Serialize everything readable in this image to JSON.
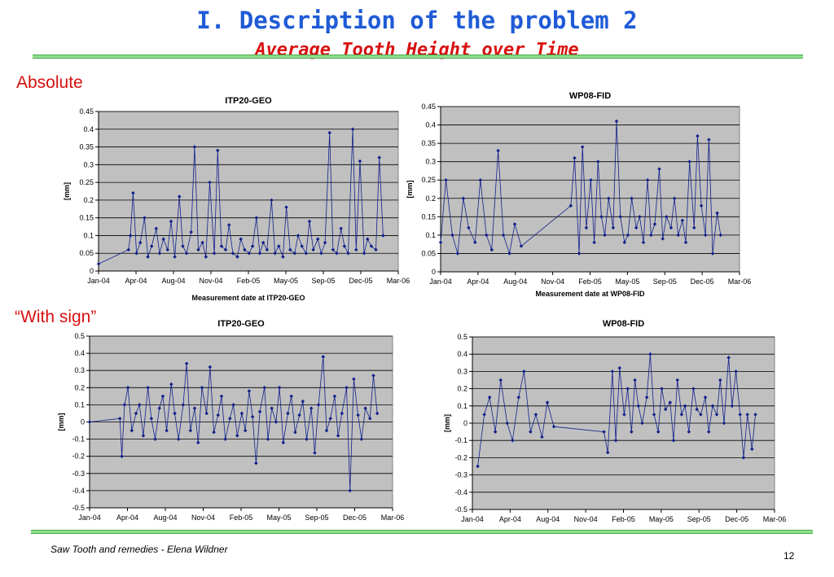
{
  "slide": {
    "title": "I. Description of the problem 2",
    "subtitle": "Average Tooth Height over Time",
    "label_absolute": "Absolute",
    "label_with_sign": "“With sign”",
    "footer": "Saw Tooth and remedies  - Elena Wildner",
    "page_number": "12"
  },
  "colors": {
    "plot_bg": "#c0c0c0",
    "series": "#10208a",
    "grid": "#000000",
    "title_blue": "#1f5bd6",
    "accent_red": "#d81010",
    "rule_green": "#8fe08f"
  },
  "chart_data": [
    {
      "id": "abs-itp20",
      "type": "scatter",
      "title": "ITP20-GEO",
      "xlabel": "Measurement date at ITP20-GEO",
      "ylabel": "[mm]",
      "xlim": [
        "2004-01-01",
        "2006-03-01"
      ],
      "ylim": [
        0,
        0.45
      ],
      "yticks": [
        0,
        0.05,
        0.1,
        0.15,
        0.2,
        0.25,
        0.3,
        0.35,
        0.4,
        0.45
      ],
      "ytick_labels": [
        "0",
        "0.05",
        "0.1",
        "0.15",
        "0.2",
        "0.25",
        "0.3",
        "0.35",
        "0.4",
        "0.45"
      ],
      "xtick_labels": [
        "Jan-04",
        "Apr-04",
        "Aug-04",
        "Nov-04",
        "Feb-05",
        "May-05",
        "Sep-05",
        "Dec-05",
        "Mar-06"
      ],
      "grid": true,
      "x": [
        "2004-01-01",
        "2004-03-20",
        "2004-03-25",
        "2004-04-01",
        "2004-04-10",
        "2004-04-20",
        "2004-05-01",
        "2004-05-10",
        "2004-05-20",
        "2004-06-01",
        "2004-06-10",
        "2004-06-20",
        "2004-07-01",
        "2004-07-10",
        "2004-07-20",
        "2004-08-01",
        "2004-08-10",
        "2004-08-20",
        "2004-09-01",
        "2004-09-10",
        "2004-09-20",
        "2004-10-01",
        "2004-10-10",
        "2004-10-20",
        "2004-11-01",
        "2004-11-10",
        "2004-11-20",
        "2004-12-01",
        "2004-12-10",
        "2004-12-20",
        "2005-01-01",
        "2005-01-10",
        "2005-01-20",
        "2005-02-01",
        "2005-02-10",
        "2005-02-20",
        "2005-03-01",
        "2005-03-10",
        "2005-03-20",
        "2005-04-01",
        "2005-04-10",
        "2005-04-20",
        "2005-05-01",
        "2005-05-10",
        "2005-05-20",
        "2005-06-01",
        "2005-06-10",
        "2005-06-20",
        "2005-07-01",
        "2005-07-10",
        "2005-07-20",
        "2005-08-01",
        "2005-08-10",
        "2005-08-20",
        "2005-09-01",
        "2005-09-10",
        "2005-09-20",
        "2005-10-01",
        "2005-10-10",
        "2005-10-20",
        "2005-11-01",
        "2005-11-10",
        "2005-11-20",
        "2005-12-01",
        "2005-12-10",
        "2005-12-20",
        "2006-01-01",
        "2006-01-10",
        "2006-01-20"
      ],
      "y": [
        0.02,
        0.06,
        0.1,
        0.22,
        0.05,
        0.08,
        0.15,
        0.04,
        0.07,
        0.12,
        0.05,
        0.09,
        0.06,
        0.14,
        0.04,
        0.21,
        0.07,
        0.05,
        0.11,
        0.35,
        0.06,
        0.08,
        0.04,
        0.25,
        0.05,
        0.34,
        0.07,
        0.06,
        0.13,
        0.05,
        0.04,
        0.09,
        0.06,
        0.05,
        0.07,
        0.15,
        0.05,
        0.08,
        0.06,
        0.2,
        0.05,
        0.07,
        0.04,
        0.18,
        0.06,
        0.05,
        0.1,
        0.07,
        0.05,
        0.14,
        0.06,
        0.09,
        0.05,
        0.08,
        0.39,
        0.06,
        0.05,
        0.12,
        0.07,
        0.05,
        0.4,
        0.06,
        0.31,
        0.05,
        0.09,
        0.07,
        0.06,
        0.32,
        0.1
      ]
    },
    {
      "id": "abs-wp08",
      "type": "scatter",
      "title": "WP08-FID",
      "xlabel": "Measurement date at WP08-FID",
      "ylabel": "[mm]",
      "xlim": [
        "2004-01-01",
        "2006-03-01"
      ],
      "ylim": [
        0,
        0.45
      ],
      "yticks": [
        0,
        0.05,
        0.1,
        0.15,
        0.2,
        0.25,
        0.3,
        0.35,
        0.4,
        0.45
      ],
      "ytick_labels": [
        "0",
        "0.05",
        "0.1",
        "0.15",
        "0.2",
        "0.25",
        "0.3",
        "0.35",
        "0.4",
        "0.45"
      ],
      "xtick_labels": [
        "Jan-04",
        "Apr-04",
        "Aug-04",
        "Nov-04",
        "Feb-05",
        "May-05",
        "Sep-05",
        "Dec-05",
        "Mar-06"
      ],
      "grid": true,
      "x": [
        "2004-01-01",
        "2004-01-15",
        "2004-02-01",
        "2004-02-15",
        "2004-03-01",
        "2004-03-15",
        "2004-04-01",
        "2004-04-15",
        "2004-05-01",
        "2004-05-15",
        "2004-06-01",
        "2004-06-15",
        "2004-07-01",
        "2004-07-15",
        "2004-08-01",
        "2004-12-10",
        "2004-12-20",
        "2005-01-01",
        "2005-01-10",
        "2005-01-20",
        "2005-02-01",
        "2005-02-10",
        "2005-02-20",
        "2005-03-01",
        "2005-03-10",
        "2005-03-20",
        "2005-04-01",
        "2005-04-10",
        "2005-04-20",
        "2005-05-01",
        "2005-05-10",
        "2005-05-20",
        "2005-06-01",
        "2005-06-10",
        "2005-06-20",
        "2005-07-01",
        "2005-07-10",
        "2005-07-20",
        "2005-08-01",
        "2005-08-10",
        "2005-08-20",
        "2005-09-01",
        "2005-09-10",
        "2005-09-20",
        "2005-10-01",
        "2005-10-10",
        "2005-10-20",
        "2005-11-01",
        "2005-11-10",
        "2005-11-20",
        "2005-12-01",
        "2005-12-10",
        "2005-12-20",
        "2006-01-01",
        "2006-01-10"
      ],
      "y": [
        0.08,
        0.25,
        0.1,
        0.05,
        0.2,
        0.12,
        0.08,
        0.25,
        0.1,
        0.06,
        0.33,
        0.1,
        0.05,
        0.13,
        0.07,
        0.18,
        0.31,
        0.05,
        0.34,
        0.12,
        0.25,
        0.08,
        0.3,
        0.15,
        0.1,
        0.2,
        0.12,
        0.41,
        0.15,
        0.08,
        0.1,
        0.2,
        0.12,
        0.15,
        0.08,
        0.25,
        0.1,
        0.13,
        0.28,
        0.09,
        0.15,
        0.12,
        0.2,
        0.1,
        0.14,
        0.08,
        0.3,
        0.12,
        0.37,
        0.18,
        0.1,
        0.36,
        0.05,
        0.16,
        0.1
      ]
    },
    {
      "id": "sign-itp20",
      "type": "scatter",
      "title": "ITP20-GEO",
      "xlabel": "",
      "ylabel": "[mm]",
      "xlim": [
        "2004-01-01",
        "2006-03-01"
      ],
      "ylim": [
        -0.5,
        0.5
      ],
      "yticks": [
        -0.5,
        -0.4,
        -0.3,
        -0.2,
        -0.1,
        0,
        0.1,
        0.2,
        0.3,
        0.4,
        0.5
      ],
      "ytick_labels": [
        "-0.5",
        "-0.4",
        "-0.3",
        "-0.2",
        "-0.1",
        "0",
        "0.1",
        "0.2",
        "0.3",
        "0.4",
        "0.5"
      ],
      "xtick_labels": [
        "Jan-04",
        "Apr-04",
        "Aug-04",
        "Nov-04",
        "Feb-05",
        "May-05",
        "Sep-05",
        "Dec-05",
        "Mar-06"
      ],
      "grid": true,
      "x": [
        "2004-01-01",
        "2004-03-20",
        "2004-03-25",
        "2004-04-01",
        "2004-04-10",
        "2004-04-20",
        "2004-05-01",
        "2004-05-10",
        "2004-05-20",
        "2004-06-01",
        "2004-06-10",
        "2004-06-20",
        "2004-07-01",
        "2004-07-10",
        "2004-07-20",
        "2004-08-01",
        "2004-08-10",
        "2004-08-20",
        "2004-09-01",
        "2004-09-10",
        "2004-09-20",
        "2004-10-01",
        "2004-10-10",
        "2004-10-20",
        "2004-11-01",
        "2004-11-10",
        "2004-11-20",
        "2004-12-01",
        "2004-12-10",
        "2004-12-20",
        "2005-01-01",
        "2005-01-10",
        "2005-01-20",
        "2005-02-01",
        "2005-02-10",
        "2005-02-20",
        "2005-03-01",
        "2005-03-10",
        "2005-03-20",
        "2005-04-01",
        "2005-04-10",
        "2005-04-20",
        "2005-05-01",
        "2005-05-10",
        "2005-05-20",
        "2005-06-01",
        "2005-06-10",
        "2005-06-20",
        "2005-07-01",
        "2005-07-10",
        "2005-07-20",
        "2005-08-01",
        "2005-08-10",
        "2005-08-20",
        "2005-09-01",
        "2005-09-10",
        "2005-09-20",
        "2005-10-01",
        "2005-10-10",
        "2005-10-20",
        "2005-11-01",
        "2005-11-10",
        "2005-11-20",
        "2005-12-01",
        "2005-12-10",
        "2005-12-20",
        "2006-01-01",
        "2006-01-10",
        "2006-01-20"
      ],
      "y": [
        0.0,
        0.02,
        -0.2,
        0.1,
        0.2,
        -0.05,
        0.05,
        0.1,
        -0.08,
        0.2,
        0.02,
        -0.1,
        0.08,
        0.15,
        -0.05,
        0.22,
        0.05,
        -0.1,
        0.1,
        0.34,
        -0.05,
        0.08,
        -0.12,
        0.2,
        0.05,
        0.32,
        -0.06,
        0.04,
        0.15,
        -0.1,
        0.02,
        0.1,
        -0.08,
        0.05,
        -0.05,
        0.18,
        0.03,
        -0.24,
        0.06,
        0.2,
        -0.1,
        0.08,
        0.0,
        0.2,
        -0.12,
        0.05,
        0.15,
        -0.06,
        0.04,
        0.12,
        -0.1,
        0.08,
        -0.18,
        0.1,
        0.38,
        -0.05,
        0.02,
        0.15,
        -0.08,
        0.05,
        0.2,
        -0.4,
        0.25,
        0.04,
        -0.1,
        0.08,
        0.02,
        0.27,
        0.05
      ]
    },
    {
      "id": "sign-wp08",
      "type": "scatter",
      "title": "WP08-FID",
      "xlabel": "",
      "ylabel": "[mm]",
      "xlim": [
        "2004-01-01",
        "2006-03-01"
      ],
      "ylim": [
        -0.5,
        0.5
      ],
      "yticks": [
        -0.5,
        -0.4,
        -0.3,
        -0.2,
        -0.1,
        0,
        0.1,
        0.2,
        0.3,
        0.4,
        0.5
      ],
      "ytick_labels": [
        "-0.5",
        "-0.4",
        "-0.3",
        "-0.2",
        "-0.1",
        "0",
        "0.1",
        "0.2",
        "0.3",
        "0.4",
        "0.5"
      ],
      "xtick_labels": [
        "Jan-04",
        "Apr-04",
        "Aug-04",
        "Nov-04",
        "Feb-05",
        "May-05",
        "Sep-05",
        "Dec-05",
        "Mar-06"
      ],
      "grid": true,
      "x": [
        "2004-01-15",
        "2004-02-01",
        "2004-02-15",
        "2004-03-01",
        "2004-03-15",
        "2004-04-01",
        "2004-04-15",
        "2004-05-01",
        "2004-05-15",
        "2004-06-01",
        "2004-06-15",
        "2004-07-01",
        "2004-07-15",
        "2004-08-01",
        "2004-12-10",
        "2004-12-20",
        "2005-01-01",
        "2005-01-10",
        "2005-01-20",
        "2005-02-01",
        "2005-02-10",
        "2005-02-20",
        "2005-03-01",
        "2005-03-10",
        "2005-03-20",
        "2005-04-01",
        "2005-04-10",
        "2005-04-20",
        "2005-05-01",
        "2005-05-10",
        "2005-05-20",
        "2005-06-01",
        "2005-06-10",
        "2005-06-20",
        "2005-07-01",
        "2005-07-10",
        "2005-07-20",
        "2005-08-01",
        "2005-08-10",
        "2005-08-20",
        "2005-09-01",
        "2005-09-10",
        "2005-09-20",
        "2005-10-01",
        "2005-10-10",
        "2005-10-20",
        "2005-11-01",
        "2005-11-10",
        "2005-11-20",
        "2005-12-01",
        "2005-12-10",
        "2005-12-20",
        "2006-01-01",
        "2006-01-10"
      ],
      "y": [
        -0.25,
        0.05,
        0.15,
        -0.05,
        0.25,
        0.0,
        -0.1,
        0.15,
        0.3,
        -0.05,
        0.05,
        -0.08,
        0.12,
        -0.02,
        -0.05,
        -0.17,
        0.3,
        -0.1,
        0.32,
        0.05,
        0.2,
        -0.05,
        0.25,
        0.1,
        0.0,
        0.15,
        0.4,
        0.05,
        -0.05,
        0.2,
        0.08,
        0.12,
        -0.1,
        0.25,
        0.05,
        0.1,
        -0.05,
        0.2,
        0.08,
        0.05,
        0.15,
        -0.05,
        0.1,
        0.05,
        0.25,
        0.0,
        0.38,
        0.1,
        0.3,
        0.05,
        -0.2,
        0.05,
        -0.15,
        0.05
      ]
    }
  ]
}
